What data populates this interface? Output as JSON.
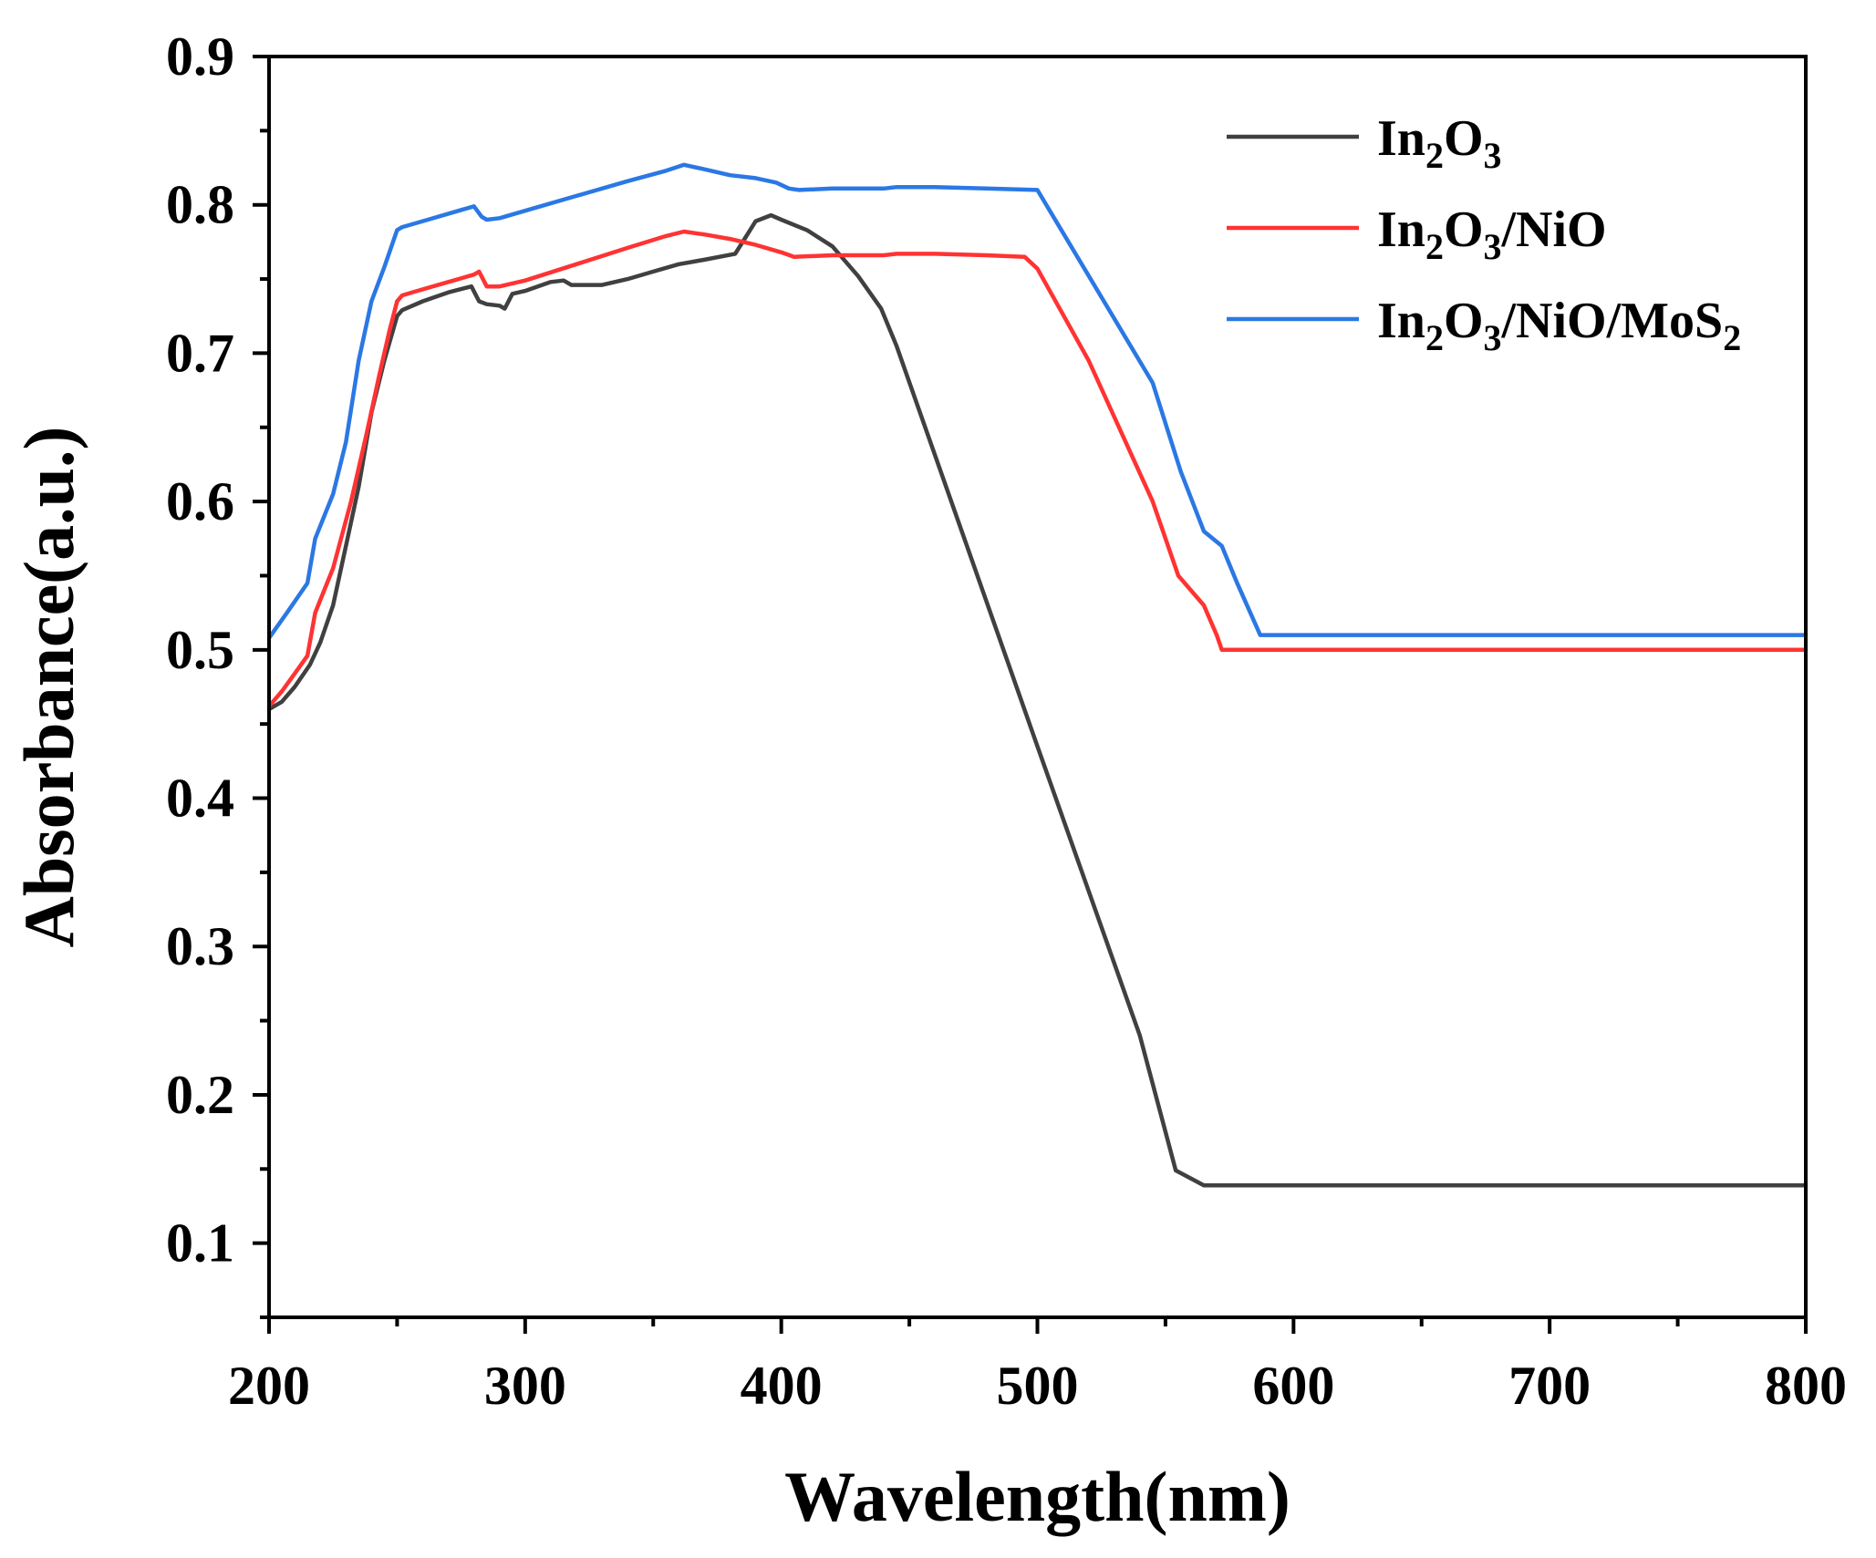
{
  "chart_data": {
    "type": "line",
    "title": "",
    "xlabel": "Wavelength(nm)",
    "ylabel": "Absorbance(a.u.)",
    "xlim": [
      200,
      800
    ],
    "ylim": [
      0.05,
      0.9
    ],
    "xticks": [
      200,
      300,
      400,
      500,
      600,
      700,
      800
    ],
    "xtick_labels": [
      "200",
      "300",
      "400",
      "500",
      "600",
      "700",
      "800"
    ],
    "yticks": [
      0.1,
      0.2,
      0.3,
      0.4,
      0.5,
      0.6,
      0.7,
      0.8,
      0.9
    ],
    "ytick_labels": [
      "0.1",
      "0.2",
      "0.3",
      "0.4",
      "0.5",
      "0.6",
      "0.7",
      "0.8",
      "0.9"
    ],
    "legend_position": "top-right",
    "grid": false,
    "series": [
      {
        "name": "In2O3",
        "legend_parts": [
          [
            "In",
            ""
          ],
          [
            "2",
            "sub"
          ],
          [
            "O",
            ""
          ],
          [
            "3",
            "sub"
          ]
        ],
        "color": "#404040",
        "points": [
          [
            200,
            0.46
          ],
          [
            205,
            0.465
          ],
          [
            210,
            0.475
          ],
          [
            216,
            0.49
          ],
          [
            220,
            0.505
          ],
          [
            225,
            0.53
          ],
          [
            230,
            0.57
          ],
          [
            235,
            0.61
          ],
          [
            240,
            0.66
          ],
          [
            245,
            0.695
          ],
          [
            250,
            0.725
          ],
          [
            252,
            0.729
          ],
          [
            260,
            0.735
          ],
          [
            270,
            0.741
          ],
          [
            279,
            0.745
          ],
          [
            282,
            0.735
          ],
          [
            285,
            0.733
          ],
          [
            290,
            0.732
          ],
          [
            292,
            0.73
          ],
          [
            295,
            0.74
          ],
          [
            300,
            0.742
          ],
          [
            310,
            0.748
          ],
          [
            315,
            0.749
          ],
          [
            318,
            0.746
          ],
          [
            330,
            0.746
          ],
          [
            340,
            0.75
          ],
          [
            350,
            0.755
          ],
          [
            360,
            0.76
          ],
          [
            370,
            0.763
          ],
          [
            382,
            0.767
          ],
          [
            386,
            0.778
          ],
          [
            390,
            0.789
          ],
          [
            396,
            0.793
          ],
          [
            400,
            0.79
          ],
          [
            410,
            0.783
          ],
          [
            420,
            0.772
          ],
          [
            430,
            0.752
          ],
          [
            439,
            0.73
          ],
          [
            445,
            0.705
          ],
          [
            500,
            0.435
          ],
          [
            540,
            0.24
          ],
          [
            554,
            0.149
          ],
          [
            565,
            0.139
          ],
          [
            600,
            0.139
          ],
          [
            700,
            0.139
          ],
          [
            800,
            0.139
          ]
        ]
      },
      {
        "name": "In2O3/NiO",
        "legend_parts": [
          [
            "In",
            ""
          ],
          [
            "2",
            "sub"
          ],
          [
            "O",
            ""
          ],
          [
            "3",
            "sub"
          ],
          [
            "/NiO",
            ""
          ]
        ],
        "color": "#ff3333",
        "points": [
          [
            200,
            0.462
          ],
          [
            205,
            0.472
          ],
          [
            210,
            0.484
          ],
          [
            215,
            0.496
          ],
          [
            218,
            0.525
          ],
          [
            225,
            0.555
          ],
          [
            232,
            0.6
          ],
          [
            238,
            0.645
          ],
          [
            243,
            0.685
          ],
          [
            247,
            0.715
          ],
          [
            250,
            0.735
          ],
          [
            252,
            0.739
          ],
          [
            260,
            0.743
          ],
          [
            270,
            0.748
          ],
          [
            280,
            0.753
          ],
          [
            282,
            0.755
          ],
          [
            285,
            0.745
          ],
          [
            290,
            0.745
          ],
          [
            300,
            0.749
          ],
          [
            320,
            0.76
          ],
          [
            340,
            0.771
          ],
          [
            355,
            0.779
          ],
          [
            362,
            0.782
          ],
          [
            370,
            0.78
          ],
          [
            380,
            0.777
          ],
          [
            390,
            0.773
          ],
          [
            400,
            0.768
          ],
          [
            405,
            0.765
          ],
          [
            420,
            0.766
          ],
          [
            440,
            0.766
          ],
          [
            445,
            0.767
          ],
          [
            460,
            0.767
          ],
          [
            480,
            0.766
          ],
          [
            495,
            0.765
          ],
          [
            500,
            0.757
          ],
          [
            520,
            0.695
          ],
          [
            545,
            0.6
          ],
          [
            555,
            0.55
          ],
          [
            565,
            0.53
          ],
          [
            570,
            0.51
          ],
          [
            572,
            0.5
          ],
          [
            600,
            0.5
          ],
          [
            700,
            0.5
          ],
          [
            800,
            0.5
          ]
        ]
      },
      {
        "name": "In2O3/NiO/MoS2",
        "legend_parts": [
          [
            "In",
            ""
          ],
          [
            "2",
            "sub"
          ],
          [
            "O",
            ""
          ],
          [
            "3",
            "sub"
          ],
          [
            "/NiO/MoS",
            ""
          ],
          [
            "2",
            "sub"
          ]
        ],
        "color": "#2b78e4",
        "points": [
          [
            200,
            0.508
          ],
          [
            207,
            0.525
          ],
          [
            215,
            0.545
          ],
          [
            218,
            0.575
          ],
          [
            225,
            0.605
          ],
          [
            230,
            0.64
          ],
          [
            235,
            0.695
          ],
          [
            240,
            0.735
          ],
          [
            245,
            0.758
          ],
          [
            250,
            0.783
          ],
          [
            252,
            0.785
          ],
          [
            262,
            0.79
          ],
          [
            272,
            0.795
          ],
          [
            280,
            0.799
          ],
          [
            283,
            0.792
          ],
          [
            285,
            0.79
          ],
          [
            290,
            0.791
          ],
          [
            300,
            0.796
          ],
          [
            320,
            0.806
          ],
          [
            340,
            0.816
          ],
          [
            355,
            0.823
          ],
          [
            362,
            0.827
          ],
          [
            370,
            0.824
          ],
          [
            380,
            0.82
          ],
          [
            390,
            0.818
          ],
          [
            398,
            0.815
          ],
          [
            403,
            0.811
          ],
          [
            407,
            0.81
          ],
          [
            420,
            0.811
          ],
          [
            440,
            0.811
          ],
          [
            445,
            0.812
          ],
          [
            460,
            0.812
          ],
          [
            480,
            0.811
          ],
          [
            500,
            0.81
          ],
          [
            545,
            0.68
          ],
          [
            556,
            0.62
          ],
          [
            565,
            0.58
          ],
          [
            572,
            0.57
          ],
          [
            578,
            0.545
          ],
          [
            587,
            0.51
          ],
          [
            600,
            0.51
          ],
          [
            700,
            0.51
          ],
          [
            800,
            0.51
          ]
        ]
      }
    ]
  }
}
